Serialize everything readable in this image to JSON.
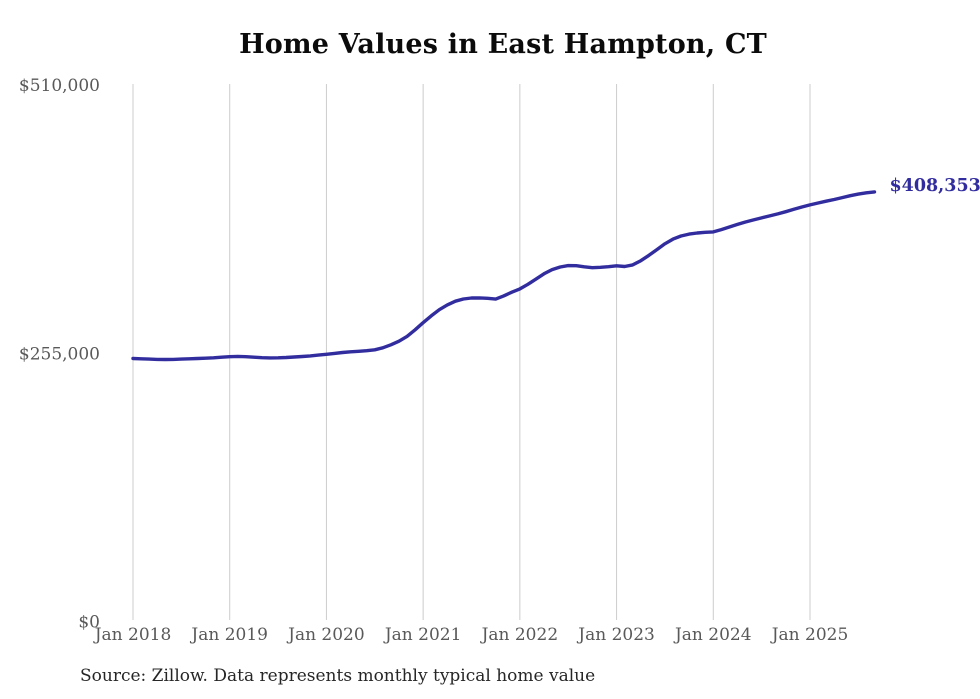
{
  "chart": {
    "title": "Home Values in East Hampton, CT",
    "source": "Source: Zillow. Data represents monthly typical home value",
    "end_label": "$408,353"
  },
  "colors": {
    "line": "#322d9e",
    "end_label": "#322d9e",
    "grid": "#cccccc",
    "axis_text": "#595959",
    "title_text": "#0b0b0b",
    "source_text": "#262626",
    "background": "#ffffff"
  },
  "chart_data": {
    "type": "line",
    "title": "Home Values in East Hampton, CT",
    "ylabel": "",
    "xlabel": "",
    "ylim": [
      0,
      510000
    ],
    "grid": "vertical-only",
    "legend": "none",
    "last_value_label": "$408,353",
    "source": "Source: Zillow. Data represents monthly typical home value",
    "yticks": [
      {
        "value": 0,
        "label": "$0"
      },
      {
        "value": 255000,
        "label": "$255,000"
      },
      {
        "value": 510000,
        "label": "$510,000"
      }
    ],
    "xticks": [
      {
        "index": 0,
        "label": "Jan 2018"
      },
      {
        "index": 12,
        "label": "Jan 2019"
      },
      {
        "index": 24,
        "label": "Jan 2020"
      },
      {
        "index": 36,
        "label": "Jan 2021"
      },
      {
        "index": 48,
        "label": "Jan 2022"
      },
      {
        "index": 60,
        "label": "Jan 2023"
      },
      {
        "index": 72,
        "label": "Jan 2024"
      },
      {
        "index": 84,
        "label": "Jan 2025"
      }
    ],
    "x": [
      "2018-01",
      "2018-02",
      "2018-03",
      "2018-04",
      "2018-05",
      "2018-06",
      "2018-07",
      "2018-08",
      "2018-09",
      "2018-10",
      "2018-11",
      "2018-12",
      "2019-01",
      "2019-02",
      "2019-03",
      "2019-04",
      "2019-05",
      "2019-06",
      "2019-07",
      "2019-08",
      "2019-09",
      "2019-10",
      "2019-11",
      "2019-12",
      "2020-01",
      "2020-02",
      "2020-03",
      "2020-04",
      "2020-05",
      "2020-06",
      "2020-07",
      "2020-08",
      "2020-09",
      "2020-10",
      "2020-11",
      "2020-12",
      "2021-01",
      "2021-02",
      "2021-03",
      "2021-04",
      "2021-05",
      "2021-06",
      "2021-07",
      "2021-08",
      "2021-09",
      "2021-10",
      "2021-11",
      "2021-12",
      "2022-01",
      "2022-02",
      "2022-03",
      "2022-04",
      "2022-05",
      "2022-06",
      "2022-07",
      "2022-08",
      "2022-09",
      "2022-10",
      "2022-11",
      "2022-12",
      "2023-01",
      "2023-02",
      "2023-03",
      "2023-04",
      "2023-05",
      "2023-06",
      "2023-07",
      "2023-08",
      "2023-09",
      "2023-10",
      "2023-11",
      "2023-12",
      "2024-01",
      "2024-02",
      "2024-03",
      "2024-04",
      "2024-05",
      "2024-06",
      "2024-07",
      "2024-08",
      "2024-09",
      "2024-10",
      "2024-11",
      "2024-12",
      "2025-01",
      "2025-02",
      "2025-03",
      "2025-04",
      "2025-05",
      "2025-06",
      "2025-07",
      "2025-08",
      "2025-09"
    ],
    "values": [
      250000,
      249700,
      249400,
      249200,
      249100,
      249200,
      249400,
      249700,
      250000,
      250300,
      250700,
      251200,
      251700,
      252000,
      251700,
      251200,
      250800,
      250600,
      250700,
      251000,
      251400,
      251900,
      252500,
      253200,
      254000,
      254900,
      255700,
      256400,
      256900,
      257400,
      258300,
      260200,
      263000,
      266500,
      271000,
      277300,
      284000,
      290500,
      296400,
      301000,
      304500,
      306600,
      307500,
      307600,
      307200,
      306500,
      309500,
      313000,
      316200,
      320500,
      325500,
      330500,
      334500,
      337000,
      338300,
      338200,
      337200,
      336300,
      336700,
      337300,
      338100,
      337500,
      339000,
      343000,
      348000,
      353500,
      359000,
      363500,
      366500,
      368300,
      369300,
      370000,
      370400,
      372500,
      375000,
      377500,
      379800,
      381800,
      383700,
      385600,
      387500,
      389600,
      391800,
      394000,
      396000,
      397800,
      399500,
      401200,
      403000,
      404800,
      406300,
      407500,
      408353
    ]
  }
}
